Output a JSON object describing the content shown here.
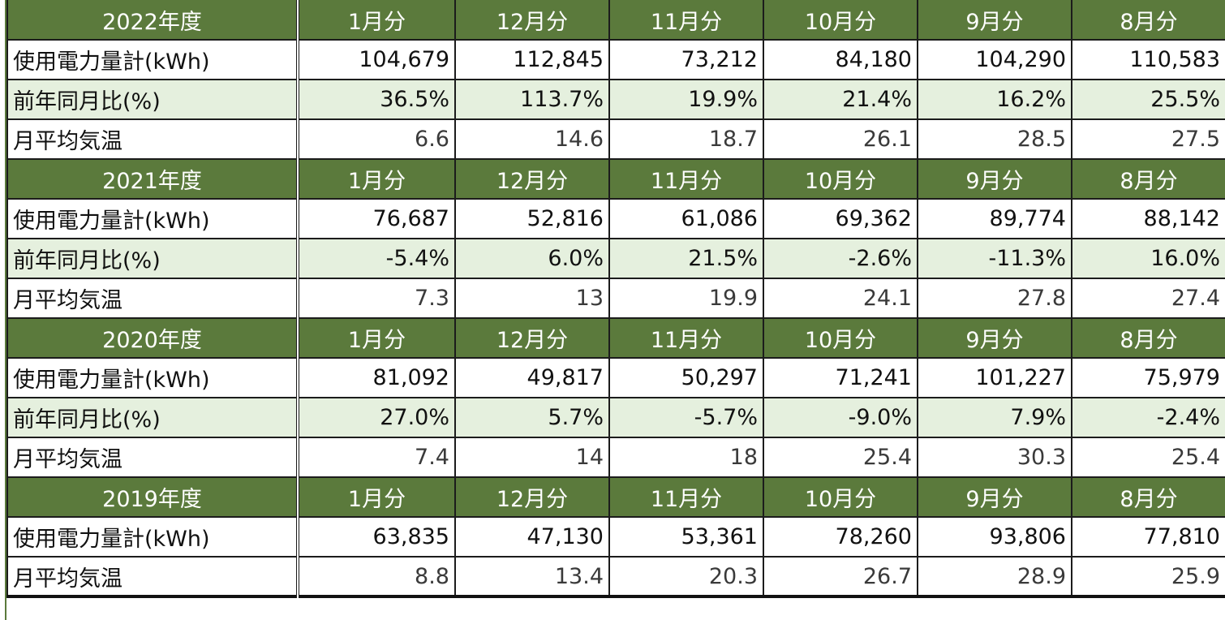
{
  "colors": {
    "header_bg": "#5b7a3c",
    "header_text": "#ffffff",
    "shade_bg": "#e5f0de"
  },
  "months": [
    "1月分",
    "12月分",
    "11月分",
    "10月分",
    "9月分",
    "8月分"
  ],
  "labels": {
    "usage": "使用電力量計(kWh)",
    "yoy": "前年同月比(%)",
    "temp": "月平均気温"
  },
  "blocks": [
    {
      "year": "2022年度",
      "usage": [
        "104,679",
        "112,845",
        "73,212",
        "84,180",
        "104,290",
        "110,583"
      ],
      "yoy": [
        "36.5%",
        "113.7%",
        "19.9%",
        "21.4%",
        "16.2%",
        "25.5%"
      ],
      "temp": [
        "6.6",
        "14.6",
        "18.7",
        "26.1",
        "28.5",
        "27.5"
      ]
    },
    {
      "year": "2021年度",
      "usage": [
        "76,687",
        "52,816",
        "61,086",
        "69,362",
        "89,774",
        "88,142"
      ],
      "yoy": [
        "-5.4%",
        "6.0%",
        "21.5%",
        "-2.6%",
        "-11.3%",
        "16.0%"
      ],
      "temp": [
        "7.3",
        "13",
        "19.9",
        "24.1",
        "27.8",
        "27.4"
      ]
    },
    {
      "year": "2020年度",
      "usage": [
        "81,092",
        "49,817",
        "50,297",
        "71,241",
        "101,227",
        "75,979"
      ],
      "yoy": [
        "27.0%",
        "5.7%",
        "-5.7%",
        "-9.0%",
        "7.9%",
        "-2.4%"
      ],
      "temp": [
        "7.4",
        "14",
        "18",
        "25.4",
        "30.3",
        "25.4"
      ]
    },
    {
      "year": "2019年度",
      "usage": [
        "63,835",
        "47,130",
        "53,361",
        "78,260",
        "93,806",
        "77,810"
      ],
      "temp": [
        "8.8",
        "13.4",
        "20.3",
        "26.7",
        "28.9",
        "25.9"
      ]
    }
  ]
}
